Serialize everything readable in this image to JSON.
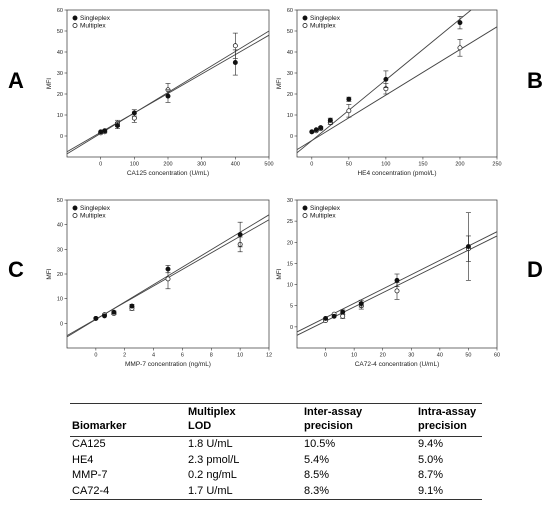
{
  "panel_labels": [
    "A",
    "B",
    "C",
    "D"
  ],
  "chart_data": [
    {
      "type": "scatter",
      "xlabel": "CA125 concentration (U/mL)",
      "ylabel": "MFI",
      "xlim": [
        -100,
        500
      ],
      "ylim": [
        -10,
        60
      ],
      "xticks": [
        "0",
        "100",
        "200",
        "300",
        "400",
        "500"
      ],
      "yticks": [
        "0",
        "10",
        "20",
        "30",
        "40",
        "50",
        "60"
      ],
      "legend": [
        "Singleplex",
        "Multiplex"
      ],
      "series": [
        {
          "name": "Singleplex",
          "marker": "filled",
          "x": [
            0,
            12,
            50,
            100,
            200,
            400
          ],
          "y": [
            2,
            2.5,
            5,
            11,
            19,
            35
          ],
          "err": [
            0,
            0.5,
            1.5,
            1.5,
            3,
            6
          ]
        },
        {
          "name": "Multiplex",
          "marker": "open",
          "x": [
            0,
            12,
            50,
            100,
            200,
            400
          ],
          "y": [
            1.5,
            2,
            6,
            8.5,
            22,
            43
          ],
          "err": [
            0,
            0.5,
            1.5,
            2,
            3,
            6
          ]
        }
      ],
      "fits": [
        {
          "series": "Singleplex",
          "x": [
            -100,
            500
          ],
          "y": [
            -7.5,
            48
          ]
        },
        {
          "series": "Multiplex",
          "x": [
            -100,
            500
          ],
          "y": [
            -8.5,
            50
          ]
        }
      ]
    },
    {
      "type": "scatter",
      "xlabel": "HE4 concentration (pmol/L)",
      "ylabel": "MFI",
      "xlim": [
        -20,
        250
      ],
      "ylim": [
        -10,
        60
      ],
      "xticks": [
        "0",
        "50",
        "100",
        "150",
        "200",
        "250"
      ],
      "yticks": [
        "0",
        "10",
        "20",
        "30",
        "40",
        "50",
        "60"
      ],
      "legend": [
        "Singleplex",
        "Multiplex"
      ],
      "series": [
        {
          "name": "Singleplex",
          "marker": "filled",
          "x": [
            0,
            6,
            12,
            25,
            50,
            100,
            200
          ],
          "y": [
            2,
            3,
            4,
            7.5,
            17.5,
            27,
            54
          ],
          "err": [
            0,
            0,
            0.5,
            1,
            1,
            4,
            3
          ]
        },
        {
          "name": "Multiplex",
          "marker": "open",
          "x": [
            0,
            6,
            12,
            25,
            50,
            100,
            200
          ],
          "y": [
            2,
            2.5,
            3.5,
            6.5,
            12,
            22.5,
            42
          ],
          "err": [
            0,
            0,
            0.5,
            1,
            3,
            2.5,
            4
          ]
        }
      ],
      "fits": [
        {
          "series": "Singleplex",
          "x": [
            -20,
            215
          ],
          "y": [
            -8,
            60
          ]
        },
        {
          "series": "Multiplex",
          "x": [
            -20,
            250
          ],
          "y": [
            -6.5,
            52
          ]
        }
      ]
    },
    {
      "type": "scatter",
      "xlabel": "MMP-7 concentration (ng/mL)",
      "ylabel": "MFI",
      "xlim": [
        -2,
        12
      ],
      "ylim": [
        -10,
        50
      ],
      "xticks": [
        "0",
        "2",
        "4",
        "6",
        "8",
        "10",
        "12"
      ],
      "yticks": [
        "0",
        "10",
        "20",
        "30",
        "40",
        "50"
      ],
      "legend": [
        "Singleplex",
        "Multiplex"
      ],
      "series": [
        {
          "name": "Singleplex",
          "marker": "filled",
          "x": [
            0,
            0.6,
            1.25,
            2.5,
            5,
            10
          ],
          "y": [
            2,
            3,
            4.5,
            7,
            22,
            36
          ],
          "err": [
            0,
            0,
            0.5,
            0.7,
            1.5,
            5
          ]
        },
        {
          "name": "Multiplex",
          "marker": "open",
          "x": [
            0,
            0.6,
            1.25,
            2.5,
            5,
            10
          ],
          "y": [
            2,
            3.5,
            4,
            6,
            18,
            32
          ],
          "err": [
            0,
            0,
            0.5,
            0.7,
            4,
            3
          ]
        }
      ],
      "fits": [
        {
          "series": "Singleplex",
          "x": [
            -2,
            12
          ],
          "y": [
            -5.5,
            44
          ]
        },
        {
          "series": "Multiplex",
          "x": [
            -2,
            12
          ],
          "y": [
            -5,
            42
          ]
        }
      ]
    },
    {
      "type": "scatter",
      "xlabel": "CA72-4 concentration (U/mL)",
      "ylabel": "MFI",
      "xlim": [
        -10,
        60
      ],
      "ylim": [
        -5,
        30
      ],
      "xticks": [
        "0",
        "10",
        "20",
        "30",
        "40",
        "50",
        "60"
      ],
      "yticks": [
        "0",
        "5",
        "10",
        "15",
        "20",
        "25",
        "30"
      ],
      "legend": [
        "Singleplex",
        "Multiplex"
      ],
      "series": [
        {
          "name": "Singleplex",
          "marker": "filled",
          "x": [
            0,
            3,
            6,
            12.5,
            25,
            50
          ],
          "y": [
            2,
            2.5,
            3.5,
            5.5,
            11,
            19
          ],
          "err": [
            0,
            0,
            0.5,
            0.8,
            1.5,
            8
          ]
        },
        {
          "name": "Multiplex",
          "marker": "open",
          "x": [
            0,
            3,
            6,
            12.5,
            25,
            50
          ],
          "y": [
            1.5,
            3,
            2.5,
            5,
            8.5,
            18.5
          ],
          "err": [
            0,
            0,
            0.5,
            0.8,
            2,
            3
          ]
        }
      ],
      "fits": [
        {
          "series": "Singleplex",
          "x": [
            -10,
            60
          ],
          "y": [
            -1.2,
            22.5
          ]
        },
        {
          "series": "Multiplex",
          "x": [
            -10,
            60
          ],
          "y": [
            -2,
            21.5
          ]
        }
      ]
    }
  ],
  "table": {
    "headers": [
      [
        "",
        "Biomarker"
      ],
      [
        "Multiplex",
        "LOD"
      ],
      [
        "Inter-assay",
        "precision"
      ],
      [
        "Intra-assay",
        "precision"
      ]
    ],
    "rows": [
      [
        "CA125",
        "1.8 U/mL",
        "10.5%",
        "9.4%"
      ],
      [
        "HE4",
        "2.3 pmol/L",
        "5.4%",
        "5.0%"
      ],
      [
        "MMP-7",
        "0.2 ng/mL",
        "8.5%",
        "8.7%"
      ],
      [
        "CA72-4",
        "1.7 U/mL",
        "8.3%",
        "9.1%"
      ]
    ]
  }
}
